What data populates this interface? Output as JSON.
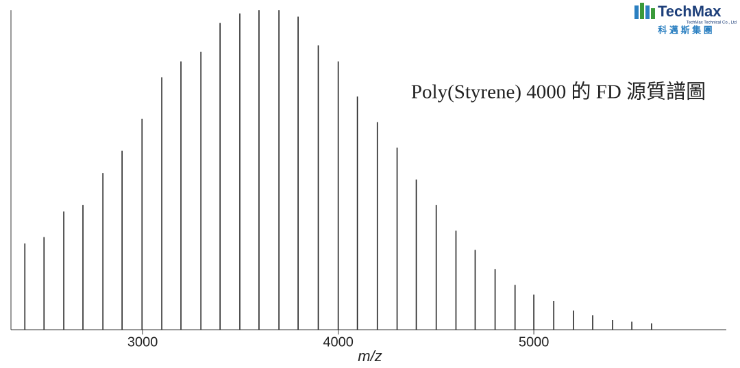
{
  "chart_data": {
    "type": "spectrum",
    "title": "Poly(Styrene) 4000 的 FD 源質譜圖",
    "xlabel": "m/z",
    "x": [
      2398,
      2496,
      2597,
      2695,
      2797,
      2895,
      2997,
      3098,
      3196,
      3298,
      3396,
      3497,
      3595,
      3697,
      3795,
      3898,
      4000,
      4098,
      4200,
      4301,
      4399,
      4501,
      4602,
      4700,
      4802,
      4904,
      5000,
      5102,
      5203,
      5301,
      5403,
      5501,
      5602
    ],
    "values": [
      27,
      29,
      37,
      39,
      49,
      56,
      66,
      79,
      84,
      87,
      96,
      99,
      100,
      100,
      98,
      89,
      84,
      73,
      65,
      57,
      47,
      39,
      31,
      25,
      19,
      14,
      11,
      9,
      6,
      4.5,
      3,
      2.5,
      2
    ],
    "color": "#222222",
    "xlim": [
      2327,
      5984
    ],
    "xticks": [
      3000,
      4000,
      5000
    ],
    "ylim": [
      0,
      100
    ]
  },
  "logo": {
    "name": "TechMax",
    "company": "TechMax Technical Co., Ltd",
    "chinese": "科 邁 斯 集 團"
  }
}
